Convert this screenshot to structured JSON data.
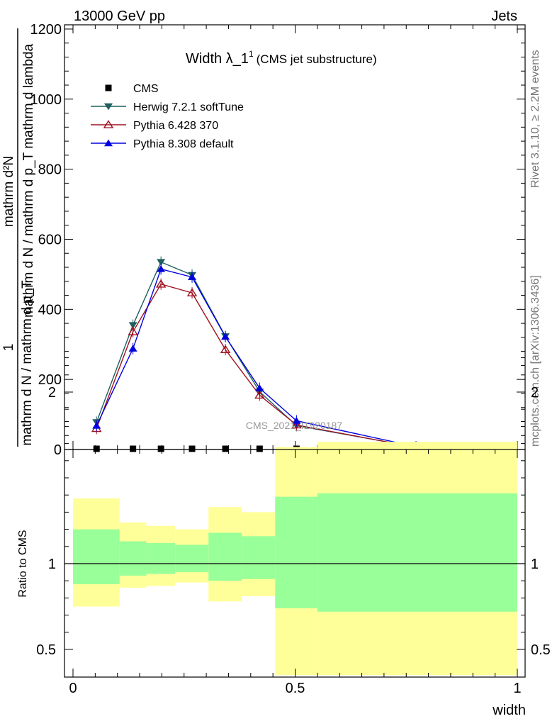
{
  "header": {
    "left": "13000 GeV pp",
    "right": "Jets"
  },
  "side_text": {
    "rivet": "Rivet 3.1.10, ≥ 2.2M events",
    "mcplots": "mcplots.cern.ch [arXiv:1306.3436]"
  },
  "chart_data": [
    {
      "type": "line",
      "title": "Width λ_1",
      "title_sup": "1",
      "subtitle": "(CMS jet substructure)",
      "watermark": "CMS_2021_I1920187",
      "ylabel_main": "mathrm d N / mathrm d p_T mathrm d lambda",
      "ylabel_num": "mathrm d²N",
      "ylabel_den": "1",
      "ylabel_den2": "mathrm d N / mathrm d p_T",
      "ylim": [
        0,
        1200
      ],
      "yticks": [
        0,
        200,
        400,
        600,
        800,
        1000,
        1200
      ],
      "ytick_labels": [
        "0",
        "200",
        "400",
        "600",
        "800",
        "1000",
        "1200"
      ],
      "xlim": [
        0,
        1
      ],
      "legend_position": "top-left",
      "series": [
        {
          "name": "CMS",
          "color": "#000000",
          "marker": "square",
          "x": [
            0.053,
            0.135,
            0.198,
            0.268,
            0.343,
            0.42,
            0.503
          ],
          "y": [
            0.5,
            0.8,
            1.0,
            0.9,
            0.6,
            0.3,
            0.1
          ]
        },
        {
          "name": "Herwig 7.2.1 softTune",
          "color": "#1f5f5f",
          "marker": "triangle-down",
          "x": [
            0.053,
            0.135,
            0.198,
            0.268,
            0.343,
            0.42,
            0.503,
            0.772
          ],
          "y": [
            78,
            355,
            535,
            498,
            323,
            165,
            68,
            7
          ]
        },
        {
          "name": "Pythia 6.428 370",
          "color": "#a01020",
          "marker": "triangle-open",
          "x": [
            0.053,
            0.135,
            0.198,
            0.268,
            0.343,
            0.42,
            0.503,
            0.772
          ],
          "y": [
            60,
            336,
            472,
            447,
            285,
            155,
            70,
            6
          ]
        },
        {
          "name": "Pythia 8.308 default",
          "color": "#0000dd",
          "marker": "triangle-up",
          "x": [
            0.053,
            0.135,
            0.198,
            0.268,
            0.343,
            0.42,
            0.503,
            0.772
          ],
          "y": [
            68,
            288,
            515,
            492,
            322,
            175,
            82,
            8
          ]
        }
      ]
    },
    {
      "type": "area",
      "ylabel": "Ratio to CMS",
      "xlabel": "width",
      "xlim": [
        0,
        1
      ],
      "xticks": [
        0,
        0.5,
        1
      ],
      "xtick_labels": [
        "0",
        "0.5",
        "1"
      ],
      "ylim": [
        0.35,
        2.3
      ],
      "ytick_labels": [
        "0.5",
        "1",
        "2"
      ],
      "yticks": [
        0.5,
        1,
        2
      ],
      "band_colors": {
        "stat": "#99ff99",
        "total": "#ffff99"
      },
      "bands": [
        {
          "x0": 0.0,
          "x1": 0.105,
          "inner_lo": 0.88,
          "inner_hi": 1.2,
          "outer_lo": 0.75,
          "outer_hi": 1.38
        },
        {
          "x0": 0.105,
          "x1": 0.165,
          "inner_lo": 0.93,
          "inner_hi": 1.13,
          "outer_lo": 0.86,
          "outer_hi": 1.24
        },
        {
          "x0": 0.165,
          "x1": 0.23,
          "inner_lo": 0.94,
          "inner_hi": 1.12,
          "outer_lo": 0.87,
          "outer_hi": 1.22
        },
        {
          "x0": 0.23,
          "x1": 0.305,
          "inner_lo": 0.95,
          "inner_hi": 1.11,
          "outer_lo": 0.89,
          "outer_hi": 1.2
        },
        {
          "x0": 0.305,
          "x1": 0.38,
          "inner_lo": 0.9,
          "inner_hi": 1.18,
          "outer_lo": 0.78,
          "outer_hi": 1.33
        },
        {
          "x0": 0.38,
          "x1": 0.455,
          "inner_lo": 0.91,
          "inner_hi": 1.16,
          "outer_lo": 0.81,
          "outer_hi": 1.3
        },
        {
          "x0": 0.455,
          "x1": 0.55,
          "inner_lo": 0.74,
          "inner_hi": 1.39,
          "outer_lo": 0.35,
          "outer_hi": 1.68
        },
        {
          "x0": 0.55,
          "x1": 1.0,
          "inner_lo": 0.72,
          "inner_hi": 1.41,
          "outer_lo": 0.35,
          "outer_hi": 1.71
        }
      ]
    }
  ]
}
